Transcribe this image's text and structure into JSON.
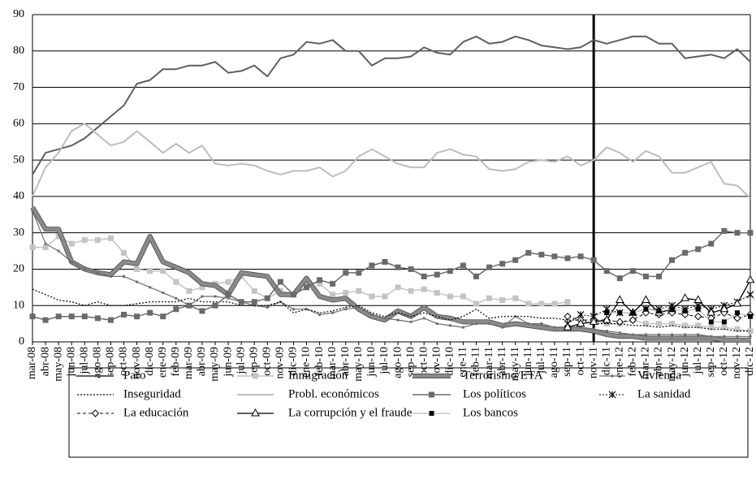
{
  "chart_data": {
    "type": "line",
    "categories": [
      "mar-08",
      "abr-08",
      "may-08",
      "jun-08",
      "jul-08",
      "ago-08",
      "sep-08",
      "oct-08",
      "nov-08",
      "dic-08",
      "ene-09",
      "feb-09",
      "mar-09",
      "abr-09",
      "may-09",
      "jun-09",
      "jul-09",
      "sep-09",
      "oct-09",
      "nov-09",
      "dic-09",
      "ene-10",
      "feb-10",
      "mar-10",
      "abr-10",
      "may-10",
      "jun-10",
      "jul-10",
      "ago-10",
      "sep-10",
      "oct-10",
      "nov-10",
      "dic-10",
      "ene-11",
      "feb-11",
      "mar-11",
      "abr-11",
      "may-11",
      "jun-11",
      "jul-11",
      "ago-11",
      "sep-11",
      "oct-11",
      "nov-11",
      "dic-11",
      "ene-12",
      "feb-12",
      "mar-12",
      "abr-12",
      "may-12",
      "jun-12",
      "jul-12",
      "sep-12",
      "oct-12",
      "nov-12",
      "dic-12"
    ],
    "ylim": [
      0,
      90
    ],
    "yticks": [
      0,
      10,
      20,
      30,
      40,
      50,
      60,
      70,
      80,
      90
    ],
    "grid": true,
    "vertical_line_category": "nov-11",
    "series": [
      {
        "name": "Paro",
        "color": "#5f5f5f",
        "width": 2,
        "dash": "",
        "marker": "none",
        "values": [
          46,
          52,
          53,
          54,
          56,
          59,
          62,
          65,
          71,
          72,
          75,
          75,
          76,
          76,
          77,
          74,
          74.5,
          76,
          73,
          78,
          79,
          82.5,
          82,
          83,
          80,
          80,
          76,
          78,
          78,
          78.5,
          81,
          79.5,
          79,
          82.5,
          84,
          82,
          82.5,
          84,
          83,
          81.5,
          81,
          80.5,
          81,
          83,
          82,
          83,
          84,
          84,
          82,
          82,
          78,
          78.5,
          79,
          78,
          80.5,
          77
        ]
      },
      {
        "name": "Inmigración",
        "color": "#c4c4c4",
        "width": 1.5,
        "dash": "",
        "marker": "square",
        "values": [
          26,
          26,
          29,
          27,
          28,
          28,
          28.5,
          24.5,
          20,
          19.5,
          19.5,
          16.5,
          14,
          15,
          16,
          16.5,
          18,
          14,
          12,
          14,
          13,
          16.5,
          16,
          13,
          13.5,
          14,
          12.5,
          12.5,
          15,
          14,
          14.5,
          13.5,
          12.5,
          12.5,
          10.5,
          12,
          11.5,
          12,
          10.5,
          10.5,
          10.5,
          11,
          null,
          6,
          5,
          5,
          6,
          5,
          5,
          5,
          4.5,
          4.5,
          4,
          4,
          3.5,
          3
        ]
      },
      {
        "name": "Terrorismo/ETA",
        "color": "#8a8a8a",
        "width": 4.5,
        "dash": "",
        "marker": "none",
        "values": [
          37,
          31,
          31,
          22,
          20,
          19,
          18.5,
          22,
          21.5,
          29,
          22,
          20.5,
          19,
          16,
          15.5,
          13,
          19,
          18.5,
          18,
          13,
          13,
          17.5,
          12.5,
          11.5,
          12,
          9,
          7,
          6,
          8.5,
          7,
          9.5,
          7,
          6.5,
          5.5,
          5.5,
          5.5,
          4.5,
          5,
          4.5,
          4,
          3.5,
          3.5,
          3.5,
          3,
          2,
          1.5,
          1.5,
          1,
          1,
          1,
          1,
          1,
          1,
          0.5,
          0.5,
          0.5
        ]
      },
      {
        "name": "Vivienda",
        "color": "#6e6e6e",
        "width": 1.2,
        "dash": "",
        "marker": "dot",
        "values": [
          36,
          27,
          25,
          22,
          20,
          19,
          18,
          18,
          16.5,
          15,
          13.5,
          12,
          10,
          12.5,
          12.5,
          12,
          11,
          10,
          9.5,
          11,
          9,
          9,
          7.5,
          8,
          9,
          9.5,
          7.5,
          6.5,
          6,
          5.5,
          6.5,
          5,
          4.5,
          4,
          5,
          5,
          4,
          7,
          5,
          5,
          4,
          4,
          4,
          3.5,
          3,
          2.5,
          2,
          2,
          2,
          2,
          2,
          2,
          1.5,
          1.5,
          1.5,
          1.5
        ]
      },
      {
        "name": "Inseguridad",
        "color": "#000000",
        "width": 1.2,
        "dash": "2 2",
        "marker": "none",
        "values": [
          14.5,
          13,
          11.5,
          11,
          10,
          11,
          10,
          10,
          10.5,
          11,
          11,
          11,
          12,
          11,
          11,
          11,
          10,
          10,
          10,
          11,
          8,
          9,
          8,
          8.5,
          9.5,
          10,
          8,
          7,
          8,
          7,
          8,
          7,
          6,
          7,
          9,
          6.5,
          7,
          7,
          7,
          6.5,
          6.5,
          6,
          6,
          5,
          5,
          5,
          4.5,
          4.5,
          4,
          4.5,
          4,
          4,
          3.5,
          3.5,
          3,
          3
        ]
      },
      {
        "name": "Probl. económicos",
        "color": "#bdbdbd",
        "width": 2,
        "dash": "",
        "marker": "none",
        "values": [
          40,
          48,
          52,
          58,
          60,
          57,
          54,
          55,
          58,
          55,
          52,
          54.5,
          52,
          54,
          49,
          48.5,
          49,
          48.5,
          47,
          46,
          47,
          47,
          48,
          45.5,
          47,
          51,
          53,
          51,
          49,
          48,
          48,
          52,
          53,
          51.5,
          51,
          47.5,
          47,
          47.5,
          49.5,
          50,
          49.5,
          51,
          48.5,
          50,
          53.5,
          52,
          49.5,
          52.5,
          51,
          46.5,
          46.5,
          48,
          49.5,
          43.5,
          43,
          39.5
        ]
      },
      {
        "name": "Los políticos",
        "color": "#6a6a6a",
        "width": 1.5,
        "dash": "",
        "marker": "square",
        "values": [
          7,
          6,
          7,
          7,
          7,
          6.5,
          6,
          7.5,
          7,
          8,
          7,
          9,
          10,
          8.5,
          10,
          13,
          11,
          11,
          12,
          16.5,
          13,
          15,
          17,
          16,
          19,
          19,
          21,
          22,
          20.5,
          20,
          18,
          18.5,
          19.5,
          21,
          18,
          20.5,
          21.5,
          22.5,
          24.5,
          24,
          23.5,
          23,
          23.5,
          22.5,
          19.5,
          17.5,
          19.5,
          18,
          18,
          22.5,
          24.5,
          25.5,
          27,
          30.5,
          30,
          30
        ]
      },
      {
        "name": "La sanidad",
        "color": "#000000",
        "width": 1,
        "dash": "2 2",
        "marker": "asterisk",
        "values": [
          null,
          null,
          null,
          null,
          null,
          null,
          null,
          null,
          null,
          null,
          null,
          null,
          null,
          null,
          null,
          null,
          null,
          null,
          null,
          null,
          null,
          null,
          null,
          null,
          null,
          null,
          null,
          null,
          null,
          null,
          null,
          null,
          null,
          null,
          null,
          null,
          null,
          null,
          null,
          null,
          null,
          5,
          7.5,
          7,
          9,
          8,
          8,
          9,
          9,
          10,
          9,
          10,
          9,
          10,
          11,
          13
        ]
      },
      {
        "name": "La educación",
        "color": "#000000",
        "width": 1,
        "dash": "4 3",
        "marker": "diamond",
        "values": [
          null,
          null,
          null,
          null,
          null,
          null,
          null,
          null,
          null,
          null,
          null,
          null,
          null,
          null,
          null,
          null,
          null,
          null,
          null,
          null,
          null,
          null,
          null,
          null,
          null,
          null,
          null,
          null,
          null,
          null,
          null,
          null,
          null,
          null,
          null,
          null,
          null,
          null,
          null,
          null,
          null,
          7,
          6,
          6,
          6,
          5.5,
          6,
          8,
          7.5,
          8,
          7.5,
          7,
          6.5,
          8,
          6.5,
          7.5
        ]
      },
      {
        "name": "La corrupción y el fraude",
        "color": "#000000",
        "width": 1.3,
        "dash": "",
        "marker": "triangle",
        "values": [
          null,
          null,
          null,
          null,
          null,
          null,
          null,
          null,
          null,
          null,
          null,
          null,
          null,
          null,
          null,
          null,
          null,
          null,
          null,
          null,
          null,
          null,
          null,
          null,
          null,
          null,
          null,
          null,
          null,
          null,
          null,
          null,
          null,
          null,
          null,
          null,
          null,
          null,
          null,
          null,
          null,
          4,
          5,
          5.5,
          6,
          11.5,
          8,
          11.5,
          8,
          9,
          12,
          11.5,
          8,
          9,
          10.5,
          17
        ]
      },
      {
        "name": "Los bancos",
        "color": "#bfbfbf",
        "width": 1.3,
        "dash": "",
        "marker": "blacksquare",
        "values": [
          null,
          null,
          null,
          null,
          null,
          null,
          null,
          null,
          null,
          null,
          null,
          null,
          null,
          null,
          null,
          null,
          null,
          null,
          null,
          null,
          null,
          null,
          null,
          null,
          null,
          null,
          null,
          null,
          null,
          null,
          null,
          null,
          null,
          null,
          null,
          null,
          null,
          null,
          null,
          null,
          null,
          null,
          null,
          null,
          8,
          8,
          8,
          9,
          8.5,
          9,
          8.5,
          9,
          5.5,
          5.5,
          8,
          7
        ]
      }
    ]
  }
}
